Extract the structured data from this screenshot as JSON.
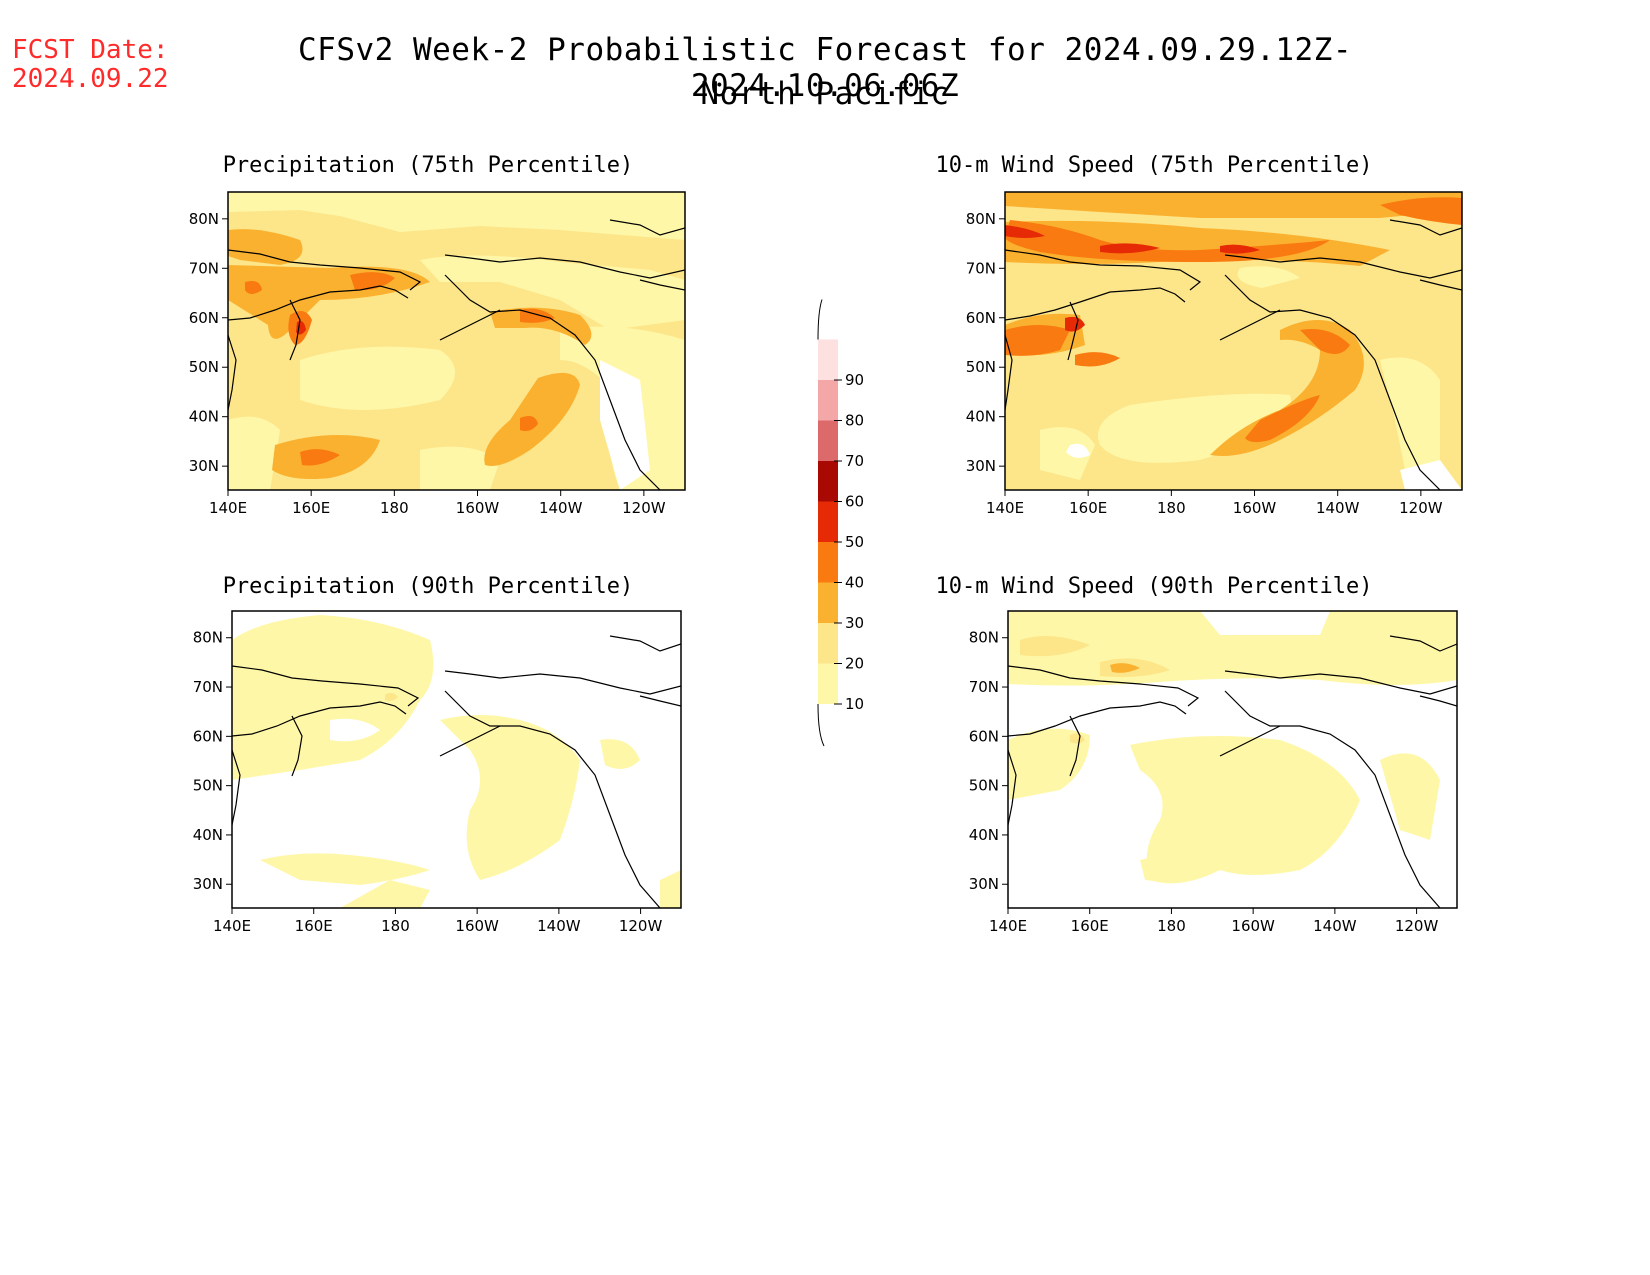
{
  "header": {
    "fcst_date_label": "FCST Date:",
    "fcst_date_value": "2024.09.22",
    "title": "CFSv2 Week-2 Probabilistic Forecast for 2024.09.29.12Z-2024.10.06.06Z",
    "subtitle": "North Pacific"
  },
  "axes": {
    "lat_labels": [
      "80N",
      "70N",
      "60N",
      "50N",
      "40N",
      "30N"
    ],
    "lon_labels": [
      "140E",
      "160E",
      "180",
      "160W",
      "140W",
      "120W"
    ]
  },
  "panels": [
    {
      "id": "precip75",
      "title": "Precipitation (75th Percentile)"
    },
    {
      "id": "wind75",
      "title": "10-m Wind Speed (75th Percentile)"
    },
    {
      "id": "precip90",
      "title": "Precipitation (90th Percentile)"
    },
    {
      "id": "wind90",
      "title": "10-m Wind Speed (90th Percentile)"
    }
  ],
  "colorbar": {
    "labels": [
      "10",
      "20",
      "30",
      "40",
      "50",
      "60",
      "70",
      "80",
      "90"
    ],
    "colors": [
      "#fff7a8",
      "#fde68a",
      "#fbb130",
      "#f97a10",
      "#e62a05",
      "#a80a03",
      "#dc6a6a",
      "#f3a7a7",
      "#fde0e0"
    ]
  }
}
